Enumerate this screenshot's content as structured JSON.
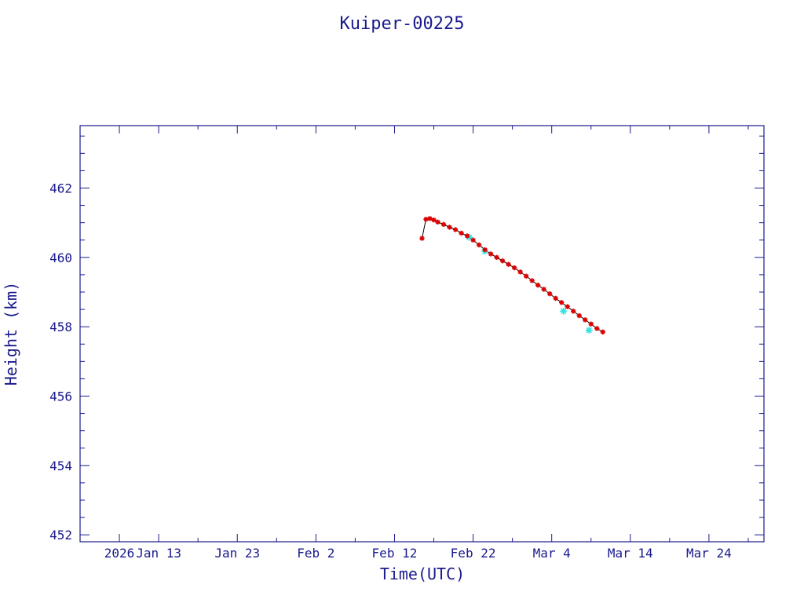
{
  "chart_data": {
    "type": "scatter",
    "title": "Kuiper-00225",
    "xlabel": "Time(UTC)",
    "ylabel": "Height (km)",
    "xlim": [
      "2026-01-03",
      "2026-03-31"
    ],
    "ylim": [
      451.8,
      463.8
    ],
    "x_ticks": [
      "2026-01-08",
      "2026-01-13",
      "2026-01-23",
      "2026-02-02",
      "2026-02-12",
      "2026-02-22",
      "2026-03-04",
      "2026-03-14",
      "2026-03-24"
    ],
    "x_tick_labels": [
      "2026",
      "Jan 13",
      "Jan 23",
      "Feb  2",
      "Feb 12",
      "Feb 22",
      "Mar  4",
      "Mar 14",
      "Mar 24"
    ],
    "y_ticks": [
      452,
      454,
      456,
      458,
      460,
      462
    ],
    "y_tick_labels": [
      "452",
      "454",
      "456",
      "458",
      "460",
      "462"
    ],
    "grid": false,
    "colors": {
      "axis": "#1a1a8c",
      "primary": "#dd0000",
      "secondary": "#33e0e0",
      "line": "#000000"
    },
    "series": [
      {
        "marker": "star",
        "color": "#dd0000",
        "points": [
          [
            "2026-02-15T12:00",
            460.55
          ],
          [
            "2026-02-16T00:00",
            461.1
          ],
          [
            "2026-02-16T12:00",
            461.12
          ],
          [
            "2026-02-17T00:00",
            461.08
          ],
          [
            "2026-02-17T12:00",
            461.02
          ],
          [
            "2026-02-18T06:00",
            460.95
          ],
          [
            "2026-02-19T00:00",
            460.87
          ],
          [
            "2026-02-19T18:00",
            460.8
          ],
          [
            "2026-02-20T12:00",
            460.7
          ],
          [
            "2026-02-21T06:00",
            460.62
          ],
          [
            "2026-02-22T00:00",
            460.5
          ],
          [
            "2026-02-22T18:00",
            460.36
          ],
          [
            "2026-02-23T12:00",
            460.22
          ],
          [
            "2026-02-24T06:00",
            460.1
          ],
          [
            "2026-02-25T00:00",
            460.0
          ],
          [
            "2026-02-25T18:00",
            459.9
          ],
          [
            "2026-02-26T12:00",
            459.8
          ],
          [
            "2026-02-27T06:00",
            459.7
          ],
          [
            "2026-02-28T00:00",
            459.58
          ],
          [
            "2026-02-28T18:00",
            459.46
          ],
          [
            "2026-03-01T12:00",
            459.33
          ],
          [
            "2026-03-02T06:00",
            459.2
          ],
          [
            "2026-03-03T00:00",
            459.08
          ],
          [
            "2026-03-03T18:00",
            458.95
          ],
          [
            "2026-03-04T12:00",
            458.82
          ],
          [
            "2026-03-05T06:00",
            458.7
          ],
          [
            "2026-03-06T00:00",
            458.58
          ],
          [
            "2026-03-06T18:00",
            458.45
          ],
          [
            "2026-03-07T12:00",
            458.32
          ],
          [
            "2026-03-08T06:00",
            458.2
          ],
          [
            "2026-03-09T00:00",
            458.08
          ],
          [
            "2026-03-09T18:00",
            457.95
          ],
          [
            "2026-03-10T12:00",
            457.85
          ]
        ]
      },
      {
        "marker": "star",
        "color": "#33e0e0",
        "points": [
          [
            "2026-02-21T12:00",
            460.58
          ],
          [
            "2026-02-23T12:00",
            460.18
          ],
          [
            "2026-03-05T12:00",
            458.45
          ],
          [
            "2026-03-08T18:00",
            457.9
          ]
        ]
      }
    ]
  }
}
